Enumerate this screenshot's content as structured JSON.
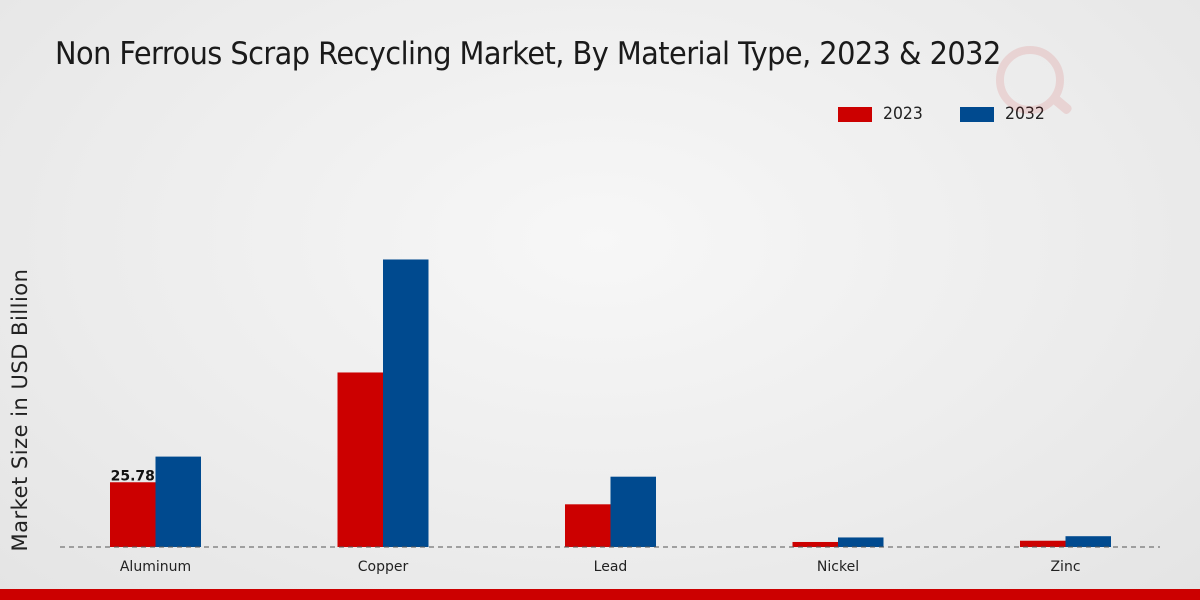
{
  "chart_data": {
    "type": "bar",
    "title": "Non Ferrous Scrap Recycling Market, By Material Type, 2023 & 2032",
    "xlabel": "",
    "ylabel": "Market Size in USD Billion",
    "categories": [
      "Aluminum",
      "Copper",
      "Lead",
      "Nickel",
      "Zinc"
    ],
    "series": [
      {
        "name": "2023",
        "color": "#cc0000",
        "values": [
          25.78,
          69.5,
          17.0,
          2.0,
          2.5
        ]
      },
      {
        "name": "2032",
        "color": "#004a8f",
        "values": [
          36.0,
          114.5,
          28.0,
          3.8,
          4.3
        ]
      }
    ],
    "data_labels": [
      {
        "series": 0,
        "index": 0,
        "text": "25.78"
      }
    ],
    "ylim": [
      0,
      180
    ],
    "grid": false,
    "legend_position": "top-right"
  },
  "colors": {
    "accent_bar": "#cc0000",
    "baseline": "#555555"
  }
}
